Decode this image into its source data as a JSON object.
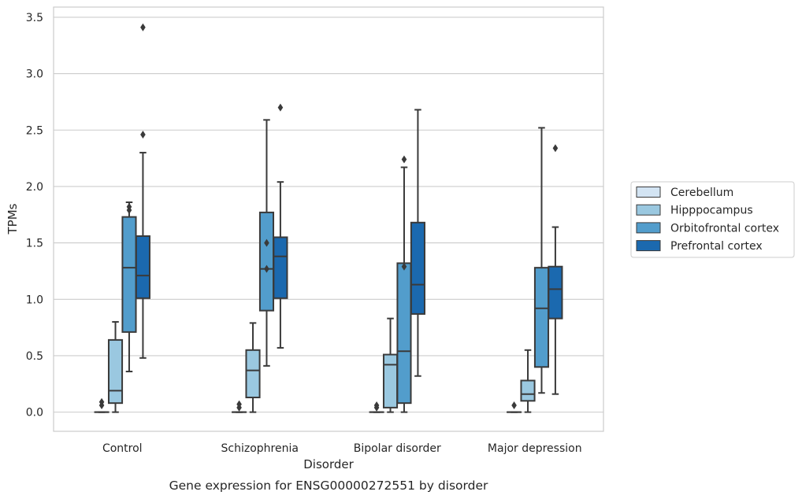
{
  "chart_data": {
    "type": "box",
    "xlabel": "Disorder",
    "ylabel": "TPMs",
    "caption": "Gene expression for ENSG00000272551 by disorder",
    "ylim": [
      -0.17,
      3.59
    ],
    "yticks": [
      0.0,
      0.5,
      1.0,
      1.5,
      2.0,
      2.5,
      3.0,
      3.5
    ],
    "ytick_labels": [
      "0.0",
      "0.5",
      "1.0",
      "1.5",
      "2.0",
      "2.5",
      "3.0",
      "3.5"
    ],
    "grid": "horizontal",
    "legend_position": "right",
    "categories": [
      "Control",
      "Schizophrenia",
      "Bipolar disorder",
      "Major depression"
    ],
    "series": [
      {
        "name": "Cerebellum",
        "color": "#d3e4f3",
        "boxes": [
          {
            "q1": 0.0,
            "median": 0.0,
            "q3": 0.0,
            "whisker_low": 0.0,
            "whisker_high": 0.0,
            "outliers": [
              0.06,
              0.09
            ]
          },
          {
            "q1": 0.0,
            "median": 0.0,
            "q3": 0.0,
            "whisker_low": 0.0,
            "whisker_high": 0.0,
            "outliers": [
              0.04,
              0.07
            ]
          },
          {
            "q1": 0.0,
            "median": 0.0,
            "q3": 0.0,
            "whisker_low": 0.0,
            "whisker_high": 0.0,
            "outliers": [
              0.04,
              0.06
            ]
          },
          {
            "q1": 0.0,
            "median": 0.0,
            "q3": 0.0,
            "whisker_low": 0.0,
            "whisker_high": 0.0,
            "outliers": [
              0.06
            ]
          }
        ]
      },
      {
        "name": "Hipppocampus",
        "color": "#9ac8e0",
        "boxes": [
          {
            "q1": 0.08,
            "median": 0.19,
            "q3": 0.64,
            "whisker_low": 0.0,
            "whisker_high": 0.8,
            "outliers": []
          },
          {
            "q1": 0.13,
            "median": 0.37,
            "q3": 0.55,
            "whisker_low": 0.0,
            "whisker_high": 0.79,
            "outliers": []
          },
          {
            "q1": 0.04,
            "median": 0.42,
            "q3": 0.51,
            "whisker_low": 0.0,
            "whisker_high": 0.83,
            "outliers": []
          },
          {
            "q1": 0.1,
            "median": 0.16,
            "q3": 0.28,
            "whisker_low": 0.0,
            "whisker_high": 0.55,
            "outliers": []
          }
        ]
      },
      {
        "name": "Orbitofrontal cortex",
        "color": "#529dcc",
        "boxes": [
          {
            "q1": 0.71,
            "median": 1.28,
            "q3": 1.73,
            "whisker_low": 0.36,
            "whisker_high": 1.86,
            "outliers": [
              1.79,
              1.82
            ]
          },
          {
            "q1": 0.9,
            "median": 1.27,
            "q3": 1.77,
            "whisker_low": 0.41,
            "whisker_high": 2.59,
            "outliers": [
              1.27,
              1.5
            ]
          },
          {
            "q1": 0.08,
            "median": 0.54,
            "q3": 1.32,
            "whisker_low": 0.0,
            "whisker_high": 2.17,
            "outliers": [
              1.29,
              2.24
            ]
          },
          {
            "q1": 0.4,
            "median": 0.92,
            "q3": 1.28,
            "whisker_low": 0.17,
            "whisker_high": 2.52,
            "outliers": []
          }
        ]
      },
      {
        "name": "Prefrontal cortex",
        "color": "#1b69af",
        "boxes": [
          {
            "q1": 1.01,
            "median": 1.21,
            "q3": 1.56,
            "whisker_low": 0.48,
            "whisker_high": 2.3,
            "outliers": [
              3.41,
              2.46
            ]
          },
          {
            "q1": 1.01,
            "median": 1.38,
            "q3": 1.55,
            "whisker_low": 0.57,
            "whisker_high": 2.04,
            "outliers": [
              2.7
            ]
          },
          {
            "q1": 0.87,
            "median": 1.13,
            "q3": 1.68,
            "whisker_low": 0.32,
            "whisker_high": 2.68,
            "outliers": []
          },
          {
            "q1": 0.83,
            "median": 1.09,
            "q3": 1.29,
            "whisker_low": 0.16,
            "whisker_high": 1.64,
            "outliers": [
              2.34
            ]
          }
        ]
      }
    ]
  }
}
